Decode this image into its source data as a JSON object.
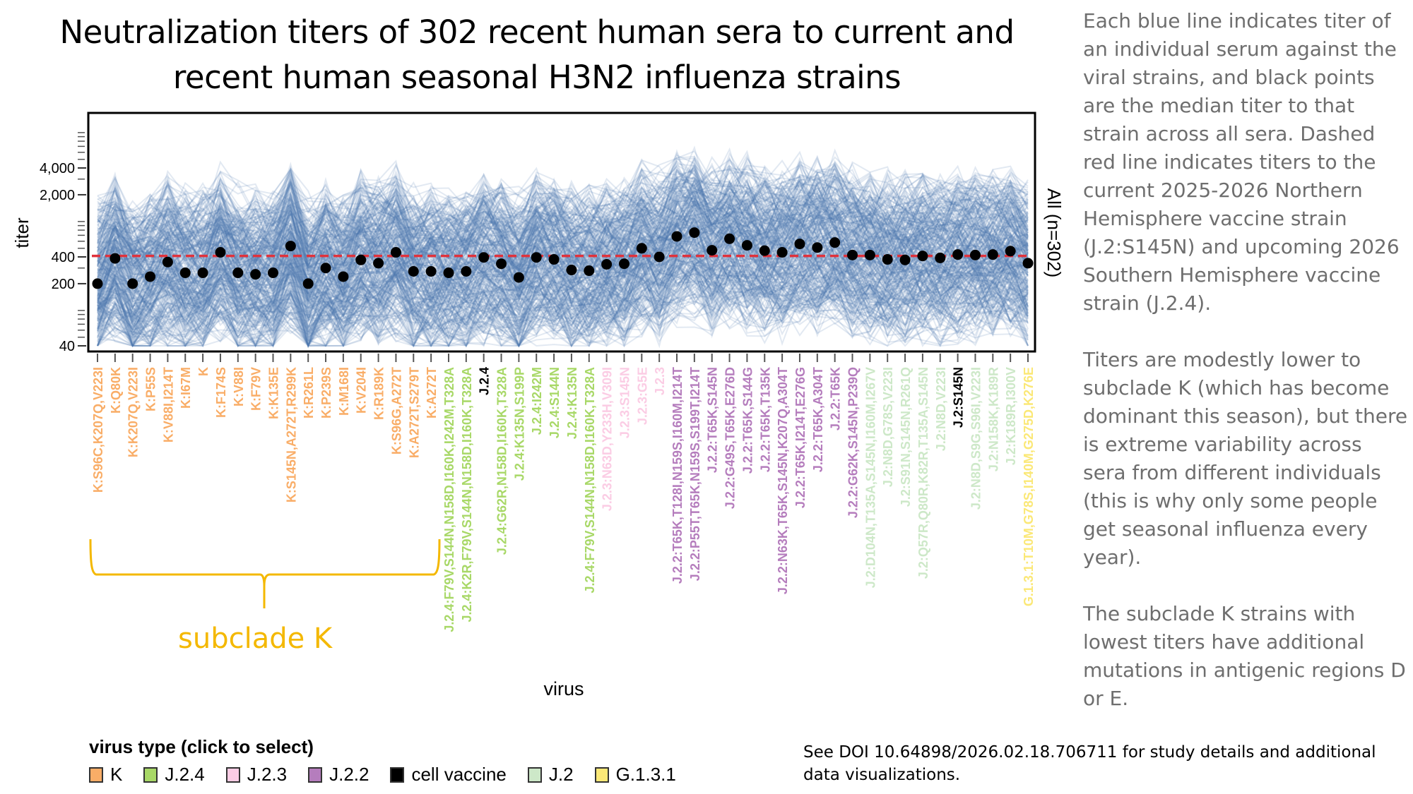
{
  "title": "Neutralization titers of 302 recent human sera to current and recent human seasonal H3N2 influenza strains",
  "side_notes": [
    "Each blue line indicates titer of an individual serum against the viral strains, and black points are the median titer to that strain across all sera. Dashed red line indicates titers to the current 2025-2026 Northern Hemisphere vaccine strain (J.2:S145N) and upcoming 2026 Southern Hemisphere vaccine strain (J.2.4).",
    "Titers are modestly lower to subclade K (which has become dominant this season), but there is extreme variability across sera from different individuals (this is why only some people get seasonal influenza every year).",
    "The subclade K strains with lowest titers have additional mutations in antigenic regions D or E."
  ],
  "subclade_annotation": "subclade K",
  "doi_note": "See DOI 10.64898/2026.02.18.706711 for study details and additional data visualizations.",
  "legend": {
    "title": "virus type (click to select)",
    "items": [
      {
        "label": "K",
        "color": "#f9ad67"
      },
      {
        "label": "J.2.4",
        "color": "#a8d867"
      },
      {
        "label": "J.2.3",
        "color": "#fbcce4"
      },
      {
        "label": "J.2.2",
        "color": "#b57dbd"
      },
      {
        "label": "cell vaccine",
        "color": "#000000"
      },
      {
        "label": "J.2",
        "color": "#cde8c8"
      },
      {
        "label": "G.1.3.1",
        "color": "#fbe877"
      }
    ]
  },
  "colors": {
    "serum_lines": "#4a78ae",
    "median_points": "#000000",
    "reference_line": "#e0323c",
    "brace": "#f4b800"
  },
  "chart_data": {
    "type": "line",
    "title": "Neutralization titers of 302 recent human sera to current and recent human seasonal H3N2 influenza strains",
    "xlabel": "virus",
    "ylabel": "titer",
    "facet_label": "All (n=302)",
    "y_scale": "log",
    "ylim": [
      35,
      17000
    ],
    "y_ticks": [
      40,
      200,
      400,
      2000,
      4000
    ],
    "y_tick_labels": [
      "40",
      "200",
      "400",
      "2,000",
      "4,000"
    ],
    "reference_line": {
      "value": 410,
      "style": "dashed",
      "description": "titer to current vaccine strains"
    },
    "n_sera": 302,
    "series": [
      {
        "name": "median titer",
        "type": "points"
      }
    ],
    "categories": [
      {
        "label": "K:S96C,K207Q,V223I",
        "type": "K",
        "median": 200
      },
      {
        "label": "K:Q80K",
        "type": "K",
        "median": 385
      },
      {
        "label": "K:K207Q,V223I",
        "type": "K",
        "median": 200
      },
      {
        "label": "K:P55S",
        "type": "K",
        "median": 240
      },
      {
        "label": "K:V88I,I214T",
        "type": "K",
        "median": 350
      },
      {
        "label": "K:I67M",
        "type": "K",
        "median": 265
      },
      {
        "label": "K",
        "type": "K",
        "median": 265
      },
      {
        "label": "K:F174S",
        "type": "K",
        "median": 450
      },
      {
        "label": "K:V88I",
        "type": "K",
        "median": 265
      },
      {
        "label": "K:F79V",
        "type": "K",
        "median": 255
      },
      {
        "label": "K:K135E",
        "type": "K",
        "median": 265
      },
      {
        "label": "K:S145N,A272T,R299K",
        "type": "K",
        "median": 530
      },
      {
        "label": "K:R261L",
        "type": "K",
        "median": 200
      },
      {
        "label": "K:P239S",
        "type": "K",
        "median": 300
      },
      {
        "label": "K:M168I",
        "type": "K",
        "median": 240
      },
      {
        "label": "K:V204I",
        "type": "K",
        "median": 370
      },
      {
        "label": "K:R189K",
        "type": "K",
        "median": 340
      },
      {
        "label": "K:S96G,A272T",
        "type": "K",
        "median": 450
      },
      {
        "label": "K:A272T,S279T",
        "type": "K",
        "median": 275
      },
      {
        "label": "K:A272T",
        "type": "K",
        "median": 275
      },
      {
        "label": "J.2.4:F79V,S144N,N158D,I160K,I242M,T328A",
        "type": "J.2.4",
        "median": 265
      },
      {
        "label": "J.2.4:K2R,F79V,S144N,N158D,I160K,T328A",
        "type": "J.2.4",
        "median": 275
      },
      {
        "label": "J.2.4",
        "type": "cell vaccine",
        "median": 395
      },
      {
        "label": "J.2.4:G62R,N158D,I160K,T328A",
        "type": "J.2.4",
        "median": 335
      },
      {
        "label": "J.2.4:K135N,S199P",
        "type": "J.2.4",
        "median": 235
      },
      {
        "label": "J.2.4:I242M",
        "type": "J.2.4",
        "median": 395
      },
      {
        "label": "J.2.4:S144N",
        "type": "J.2.4",
        "median": 375
      },
      {
        "label": "J.2.4:K135N",
        "type": "J.2.4",
        "median": 285
      },
      {
        "label": "J.2.4:F79V,S144N,N158D,I160K,T328A",
        "type": "J.2.4",
        "median": 280
      },
      {
        "label": "J.2.3:N63D,Y233H,V309I",
        "type": "J.2.3",
        "median": 330
      },
      {
        "label": "J.2.3:S145N",
        "type": "J.2.3",
        "median": 335
      },
      {
        "label": "J.2.3:G5E",
        "type": "J.2.3",
        "median": 500
      },
      {
        "label": "J.2.3",
        "type": "J.2.3",
        "median": 400
      },
      {
        "label": "J.2.2:T65K,T128I,N159S,I160M,I214T",
        "type": "J.2.2",
        "median": 680
      },
      {
        "label": "J.2.2:P55T,T65K,N159S,S199T,I214T",
        "type": "J.2.2",
        "median": 750
      },
      {
        "label": "J.2.2:T65K,S145N",
        "type": "J.2.2",
        "median": 475
      },
      {
        "label": "J.2.2:G49S,T65K,E276D",
        "type": "J.2.2",
        "median": 640
      },
      {
        "label": "J.2.2:T65K,S144G",
        "type": "J.2.2",
        "median": 540
      },
      {
        "label": "J.2.2:T65K,T135K",
        "type": "J.2.2",
        "median": 470
      },
      {
        "label": "J.2.2:N63K,T65K,S145N,K207Q,A304T",
        "type": "J.2.2",
        "median": 450
      },
      {
        "label": "J.2.2:T65K,I214T,E276G",
        "type": "J.2.2",
        "median": 560
      },
      {
        "label": "J.2.2:T65K,A304T",
        "type": "J.2.2",
        "median": 510
      },
      {
        "label": "J.2.2:T65K",
        "type": "J.2.2",
        "median": 580
      },
      {
        "label": "J.2.2:G62K,S145N,P239Q",
        "type": "J.2.2",
        "median": 420
      },
      {
        "label": "J.2:D104N,T135A,S145N,I160M,I267V",
        "type": "J.2",
        "median": 420
      },
      {
        "label": "J.2:N8D,G78S,V223I",
        "type": "J.2",
        "median": 375
      },
      {
        "label": "J.2:S91N,S145N,R261Q",
        "type": "J.2",
        "median": 370
      },
      {
        "label": "J.2:Q57R,Q80R,K82R,T135A,S145N",
        "type": "J.2",
        "median": 410
      },
      {
        "label": "J.2:N8D,V223I",
        "type": "J.2",
        "median": 390
      },
      {
        "label": "J.2:S145N",
        "type": "cell vaccine",
        "median": 425
      },
      {
        "label": "J.2:N8D,S9G,S96I,V223I",
        "type": "J.2",
        "median": 420
      },
      {
        "label": "J.2:N158K,K189R",
        "type": "J.2",
        "median": 425
      },
      {
        "label": "J.2:K189R,I300V",
        "type": "J.2",
        "median": 465
      },
      {
        "label": "G.1.3.1:T10M,G78S,I140M,G275D,K276E",
        "type": "G.1.3.1",
        "median": 340
      }
    ]
  }
}
